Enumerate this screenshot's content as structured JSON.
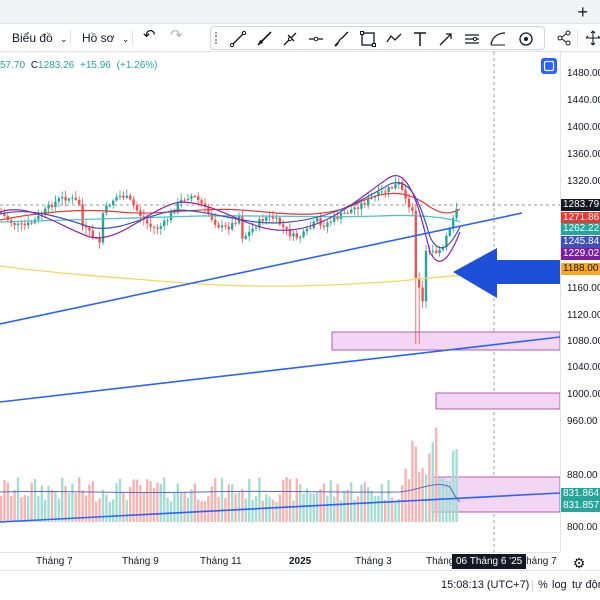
{
  "toolbar": {
    "chart_label": "Biểu đồ",
    "profile_label": "Hồ sơ"
  },
  "legend": {
    "prev_value": "57.70",
    "close_label": "C",
    "close_value": "1283.26",
    "change_abs": "+15.96",
    "change_pct": "(+1.26%)",
    "color": "#26a69a"
  },
  "price_axis": {
    "ticks": [
      "1480.00",
      "1440.00",
      "1400.00",
      "1360.00",
      "1320.00",
      "1160.00",
      "1120.00",
      "1080.00",
      "1040.00",
      "1000.00",
      "960.00",
      "880.00",
      "800.00"
    ],
    "badges": [
      {
        "label": "1283.79",
        "color": "#131722"
      },
      {
        "label": "1271.86",
        "color": "#e53935"
      },
      {
        "label": "1262.22",
        "color": "#26a69a"
      },
      {
        "label": "1245.84",
        "color": "#3f51b5"
      },
      {
        "label": "1229.02",
        "color": "#7b1fa2"
      },
      {
        "label": "1188.00",
        "color": "#f9a825"
      },
      {
        "label": "831.864",
        "color": "#26a69a"
      },
      {
        "label": "831.857",
        "color": "#26a69a"
      }
    ]
  },
  "time_axis": {
    "labels": [
      "Tháng 7",
      "Tháng 9",
      "Tháng 11",
      "2025",
      "Tháng 3",
      "Tháng",
      "Tháng 7"
    ],
    "crosshair": "06 Tháng 6 '25"
  },
  "bottom": {
    "clock": "15:08:13 (UTC+7)",
    "percent": "%",
    "log": "log",
    "auto": "tự động"
  },
  "colors": {
    "up": "#26a69a",
    "down": "#ef5350",
    "trendline": "#2962ff",
    "arrow": "#1e4fd8",
    "zone": "#f3d6f3"
  }
}
